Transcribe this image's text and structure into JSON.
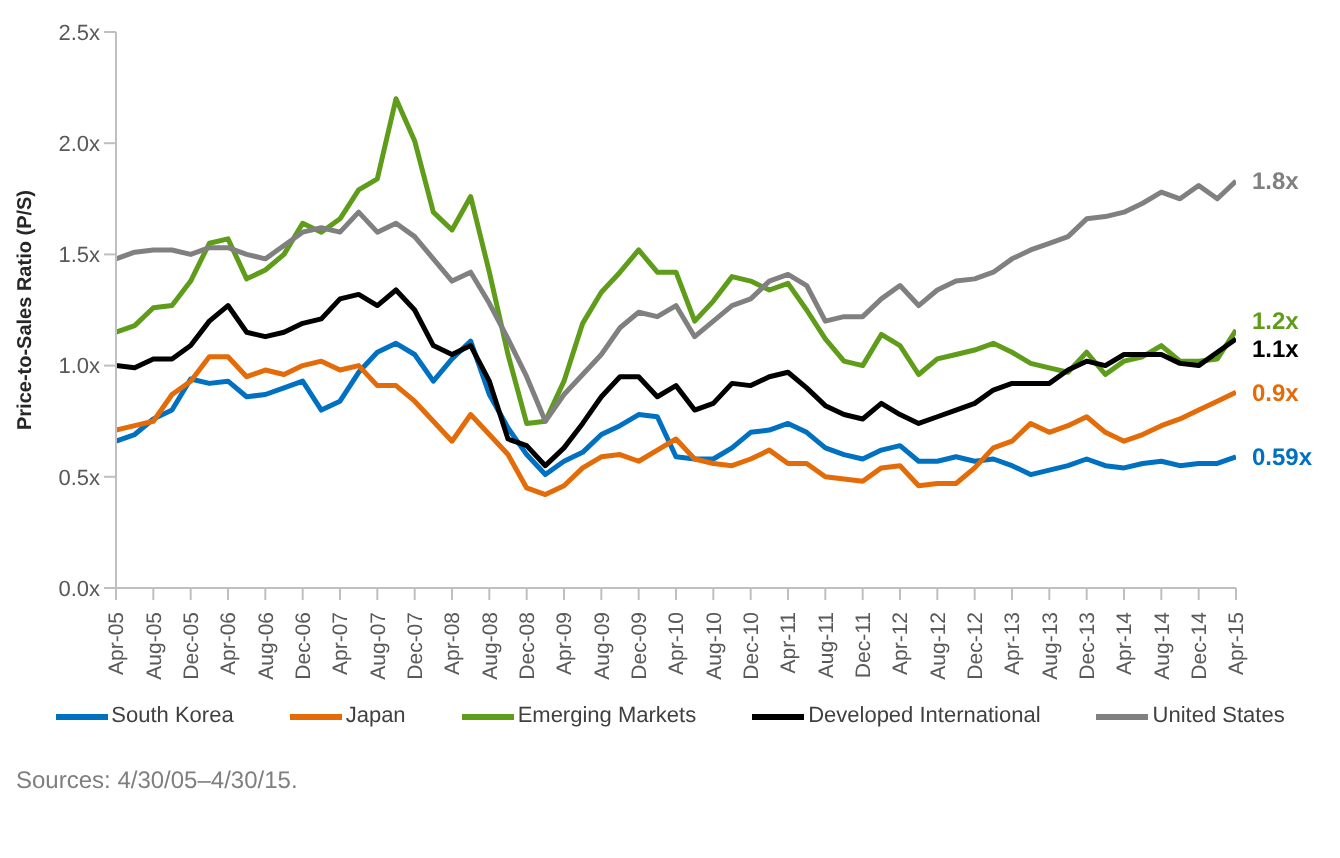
{
  "chart_data": {
    "type": "line",
    "ylabel": "Price-to-Sales Ratio (P/S)",
    "x": [
      "2005-04",
      "2005-06",
      "2005-08",
      "2005-10",
      "2005-12",
      "2006-02",
      "2006-04",
      "2006-06",
      "2006-08",
      "2006-10",
      "2006-12",
      "2007-02",
      "2007-04",
      "2007-06",
      "2007-08",
      "2007-10",
      "2007-12",
      "2008-02",
      "2008-04",
      "2008-06",
      "2008-08",
      "2008-10",
      "2008-12",
      "2009-02",
      "2009-04",
      "2009-06",
      "2009-08",
      "2009-10",
      "2009-12",
      "2010-02",
      "2010-04",
      "2010-06",
      "2010-08",
      "2010-10",
      "2010-12",
      "2011-02",
      "2011-04",
      "2011-06",
      "2011-08",
      "2011-10",
      "2011-12",
      "2012-02",
      "2012-04",
      "2012-06",
      "2012-08",
      "2012-10",
      "2012-12",
      "2013-02",
      "2013-04",
      "2013-06",
      "2013-08",
      "2013-10",
      "2013-12",
      "2014-02",
      "2014-04",
      "2014-06",
      "2014-08",
      "2014-10",
      "2014-12",
      "2015-02",
      "2015-04"
    ],
    "series": [
      {
        "name": "South Korea",
        "color": "#0070c0",
        "values": [
          0.66,
          0.69,
          0.76,
          0.8,
          0.94,
          0.92,
          0.93,
          0.86,
          0.87,
          0.9,
          0.93,
          0.8,
          0.84,
          0.97,
          1.06,
          1.1,
          1.05,
          0.93,
          1.03,
          1.11,
          0.87,
          0.72,
          0.6,
          0.51,
          0.57,
          0.61,
          0.69,
          0.73,
          0.78,
          0.77,
          0.59,
          0.58,
          0.58,
          0.63,
          0.7,
          0.71,
          0.74,
          0.7,
          0.63,
          0.6,
          0.58,
          0.62,
          0.64,
          0.57,
          0.57,
          0.59,
          0.57,
          0.58,
          0.55,
          0.51,
          0.53,
          0.55,
          0.58,
          0.55,
          0.54,
          0.56,
          0.57,
          0.55,
          0.56,
          0.56,
          0.59
        ],
        "value_labels": [
          null,
          null,
          null,
          null,
          null,
          null,
          null,
          null,
          null,
          null,
          null,
          null,
          null,
          null,
          null,
          null,
          null,
          null,
          null,
          null,
          null,
          null,
          null,
          null,
          null,
          null,
          null,
          null,
          null,
          null,
          null,
          null,
          null,
          null,
          null,
          null,
          null,
          null,
          null,
          null,
          null,
          null,
          null,
          null,
          null,
          null,
          null,
          null,
          null,
          null,
          null,
          null,
          null,
          null,
          null,
          null,
          null,
          null,
          null,
          null,
          "0.59x"
        ]
      },
      {
        "name": "Japan",
        "color": "#e36c09",
        "values": [
          0.71,
          0.73,
          0.75,
          0.87,
          0.93,
          1.04,
          1.04,
          0.95,
          0.98,
          0.96,
          1.0,
          1.02,
          0.98,
          1.0,
          0.91,
          0.91,
          0.84,
          0.75,
          0.66,
          0.78,
          0.69,
          0.6,
          0.45,
          0.42,
          0.46,
          0.54,
          0.59,
          0.6,
          0.57,
          0.62,
          0.67,
          0.58,
          0.56,
          0.55,
          0.58,
          0.62,
          0.56,
          0.56,
          0.5,
          0.49,
          0.48,
          0.54,
          0.55,
          0.46,
          0.47,
          0.47,
          0.54,
          0.63,
          0.66,
          0.74,
          0.7,
          0.73,
          0.77,
          0.7,
          0.66,
          0.69,
          0.73,
          0.76,
          0.8,
          0.84,
          0.88
        ],
        "value_labels": [
          null,
          null,
          null,
          null,
          null,
          null,
          null,
          null,
          null,
          null,
          null,
          null,
          null,
          null,
          null,
          null,
          null,
          null,
          null,
          null,
          null,
          null,
          null,
          null,
          null,
          null,
          null,
          null,
          null,
          null,
          null,
          null,
          null,
          null,
          null,
          null,
          null,
          null,
          null,
          null,
          null,
          null,
          null,
          null,
          null,
          null,
          null,
          null,
          null,
          null,
          null,
          null,
          null,
          null,
          null,
          null,
          null,
          null,
          null,
          null,
          "0.9x"
        ]
      },
      {
        "name": "Emerging Markets",
        "color": "#5f9c1a",
        "values": [
          1.15,
          1.18,
          1.26,
          1.27,
          1.38,
          1.55,
          1.57,
          1.39,
          1.43,
          1.5,
          1.64,
          1.6,
          1.66,
          1.79,
          1.84,
          2.2,
          2.01,
          1.69,
          1.61,
          1.76,
          1.42,
          1.05,
          0.74,
          0.75,
          0.93,
          1.19,
          1.33,
          1.42,
          1.52,
          1.42,
          1.42,
          1.2,
          1.29,
          1.4,
          1.38,
          1.34,
          1.37,
          1.25,
          1.12,
          1.02,
          1.0,
          1.14,
          1.09,
          0.96,
          1.03,
          1.05,
          1.07,
          1.1,
          1.06,
          1.01,
          0.99,
          0.97,
          1.06,
          0.96,
          1.02,
          1.04,
          1.09,
          1.02,
          1.02,
          1.03,
          1.16
        ],
        "value_labels": [
          null,
          null,
          null,
          null,
          null,
          null,
          null,
          null,
          null,
          null,
          null,
          null,
          null,
          null,
          null,
          null,
          null,
          null,
          null,
          null,
          null,
          null,
          null,
          null,
          null,
          null,
          null,
          null,
          null,
          null,
          null,
          null,
          null,
          null,
          null,
          null,
          null,
          null,
          null,
          null,
          null,
          null,
          null,
          null,
          null,
          null,
          null,
          null,
          null,
          null,
          null,
          null,
          null,
          null,
          null,
          null,
          null,
          null,
          null,
          null,
          "1.2x"
        ]
      },
      {
        "name": "Developed International",
        "color": "#000000",
        "values": [
          1.0,
          0.99,
          1.03,
          1.03,
          1.09,
          1.2,
          1.27,
          1.15,
          1.13,
          1.15,
          1.19,
          1.21,
          1.3,
          1.32,
          1.27,
          1.34,
          1.25,
          1.09,
          1.05,
          1.09,
          0.93,
          0.67,
          0.64,
          0.55,
          0.63,
          0.74,
          0.86,
          0.95,
          0.95,
          0.86,
          0.91,
          0.8,
          0.83,
          0.92,
          0.91,
          0.95,
          0.97,
          0.9,
          0.82,
          0.78,
          0.76,
          0.83,
          0.78,
          0.74,
          0.77,
          0.8,
          0.83,
          0.89,
          0.92,
          0.92,
          0.92,
          0.98,
          1.02,
          1.0,
          1.05,
          1.05,
          1.05,
          1.01,
          1.0,
          1.06,
          1.12
        ],
        "value_labels": [
          null,
          null,
          null,
          null,
          null,
          null,
          null,
          null,
          null,
          null,
          null,
          null,
          null,
          null,
          null,
          null,
          null,
          null,
          null,
          null,
          null,
          null,
          null,
          null,
          null,
          null,
          null,
          null,
          null,
          null,
          null,
          null,
          null,
          null,
          null,
          null,
          null,
          null,
          null,
          null,
          null,
          null,
          null,
          null,
          null,
          null,
          null,
          null,
          null,
          null,
          null,
          null,
          null,
          null,
          null,
          null,
          null,
          null,
          null,
          null,
          "1.1x"
        ]
      },
      {
        "name": "United States",
        "color": "#808080",
        "values": [
          1.48,
          1.51,
          1.52,
          1.52,
          1.5,
          1.53,
          1.53,
          1.5,
          1.48,
          1.54,
          1.6,
          1.62,
          1.6,
          1.69,
          1.6,
          1.64,
          1.58,
          1.48,
          1.38,
          1.42,
          1.28,
          1.12,
          0.95,
          0.75,
          0.87,
          0.96,
          1.05,
          1.17,
          1.24,
          1.22,
          1.27,
          1.13,
          1.2,
          1.27,
          1.3,
          1.38,
          1.41,
          1.36,
          1.2,
          1.22,
          1.22,
          1.3,
          1.36,
          1.27,
          1.34,
          1.38,
          1.39,
          1.42,
          1.48,
          1.52,
          1.55,
          1.58,
          1.66,
          1.67,
          1.69,
          1.73,
          1.78,
          1.75,
          1.81,
          1.75,
          1.83
        ],
        "value_labels": [
          null,
          null,
          null,
          null,
          null,
          null,
          null,
          null,
          null,
          null,
          null,
          null,
          null,
          null,
          null,
          null,
          null,
          null,
          null,
          null,
          null,
          null,
          null,
          null,
          null,
          null,
          null,
          null,
          null,
          null,
          null,
          null,
          null,
          null,
          null,
          null,
          null,
          null,
          null,
          null,
          null,
          null,
          null,
          null,
          null,
          null,
          null,
          null,
          null,
          null,
          null,
          null,
          null,
          null,
          null,
          null,
          null,
          null,
          null,
          null,
          "1.8x"
        ]
      }
    ],
    "xlim": [
      "2005-04",
      "2015-04"
    ],
    "xticks": [
      {
        "value": "2005-04",
        "label": "Apr-05"
      },
      {
        "value": "2005-08",
        "label": "Aug-05"
      },
      {
        "value": "2005-12",
        "label": "Dec-05"
      },
      {
        "value": "2006-04",
        "label": "Apr-06"
      },
      {
        "value": "2006-08",
        "label": "Aug-06"
      },
      {
        "value": "2006-12",
        "label": "Dec-06"
      },
      {
        "value": "2007-04",
        "label": "Apr-07"
      },
      {
        "value": "2007-08",
        "label": "Aug-07"
      },
      {
        "value": "2007-12",
        "label": "Dec-07"
      },
      {
        "value": "2008-04",
        "label": "Apr-08"
      },
      {
        "value": "2008-08",
        "label": "Aug-08"
      },
      {
        "value": "2008-12",
        "label": "Dec-08"
      },
      {
        "value": "2009-04",
        "label": "Apr-09"
      },
      {
        "value": "2009-08",
        "label": "Aug-09"
      },
      {
        "value": "2009-12",
        "label": "Dec-09"
      },
      {
        "value": "2010-04",
        "label": "Apr-10"
      },
      {
        "value": "2010-08",
        "label": "Aug-10"
      },
      {
        "value": "2010-12",
        "label": "Dec-10"
      },
      {
        "value": "2011-04",
        "label": "Apr-11"
      },
      {
        "value": "2011-08",
        "label": "Aug-11"
      },
      {
        "value": "2011-12",
        "label": "Dec-11"
      },
      {
        "value": "2012-04",
        "label": "Apr-12"
      },
      {
        "value": "2012-08",
        "label": "Aug-12"
      },
      {
        "value": "2012-12",
        "label": "Dec-12"
      },
      {
        "value": "2013-04",
        "label": "Apr-13"
      },
      {
        "value": "2013-08",
        "label": "Aug-13"
      },
      {
        "value": "2013-12",
        "label": "Dec-13"
      },
      {
        "value": "2014-04",
        "label": "Apr-14"
      },
      {
        "value": "2014-08",
        "label": "Aug-14"
      },
      {
        "value": "2014-12",
        "label": "Dec-14"
      },
      {
        "value": "2015-04",
        "label": "Apr-15"
      }
    ],
    "ylim": [
      0,
      2.5
    ],
    "yticks": [
      {
        "value": 0,
        "label": "0.0x"
      },
      {
        "value": 0.5,
        "label": "0.5x"
      },
      {
        "value": 1,
        "label": "1.0x"
      },
      {
        "value": 1.5,
        "label": "1.5x"
      },
      {
        "value": 2,
        "label": "2.0x"
      },
      {
        "value": 2.5,
        "label": "2.5x"
      }
    ],
    "grid": false,
    "legend": "bottom",
    "line_style": "solid",
    "annotations": [
      "Sources: 4/30/05–4/30/15."
    ]
  }
}
